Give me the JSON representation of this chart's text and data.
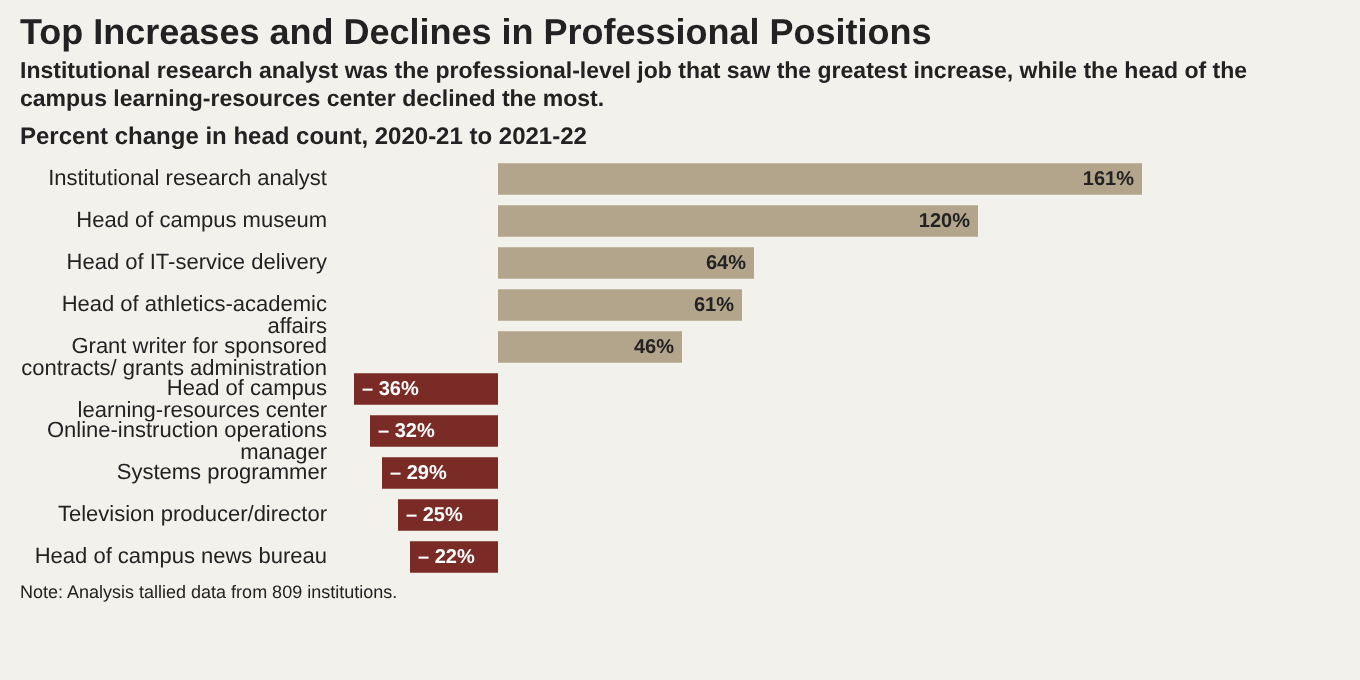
{
  "chart_data": {
    "type": "bar",
    "orientation": "horizontal",
    "title": "Top Increases and Declines in Professional Positions",
    "subtitle": "Institutional research analyst was the professional-level job that saw the greatest increase, while the head of the campus learning-resources center declined the most.",
    "annotations": [
      "Percent change in head count, 2020-21 to 2021-22",
      "Note: Analysis tallied data from 809 institutions."
    ],
    "categories": [
      "Institutional research analyst",
      "Head of campus museum",
      "Head of IT-service delivery",
      "Head of athletics-academic affairs",
      "Grant writer for sponsored contracts/ grants administration",
      "Head of campus learning-resources center",
      "Online-instruction operations manager",
      "Systems programmer",
      "Television producer/director",
      "Head of campus news bureau"
    ],
    "values": [
      161,
      120,
      64,
      61,
      46,
      -36,
      -32,
      -29,
      -25,
      -22
    ],
    "value_labels": [
      "161%",
      "120%",
      "64%",
      "61%",
      "46%",
      "– 36%",
      "– 32%",
      "– 29%",
      "– 25%",
      "– 22%"
    ],
    "colors": [
      "#b3a58b",
      "#b3a58b",
      "#b3a58b",
      "#b3a58b",
      "#b3a58b",
      "#7b2b25",
      "#7b2b25",
      "#7b2b25",
      "#7b2b25",
      "#7b2b25"
    ]
  }
}
